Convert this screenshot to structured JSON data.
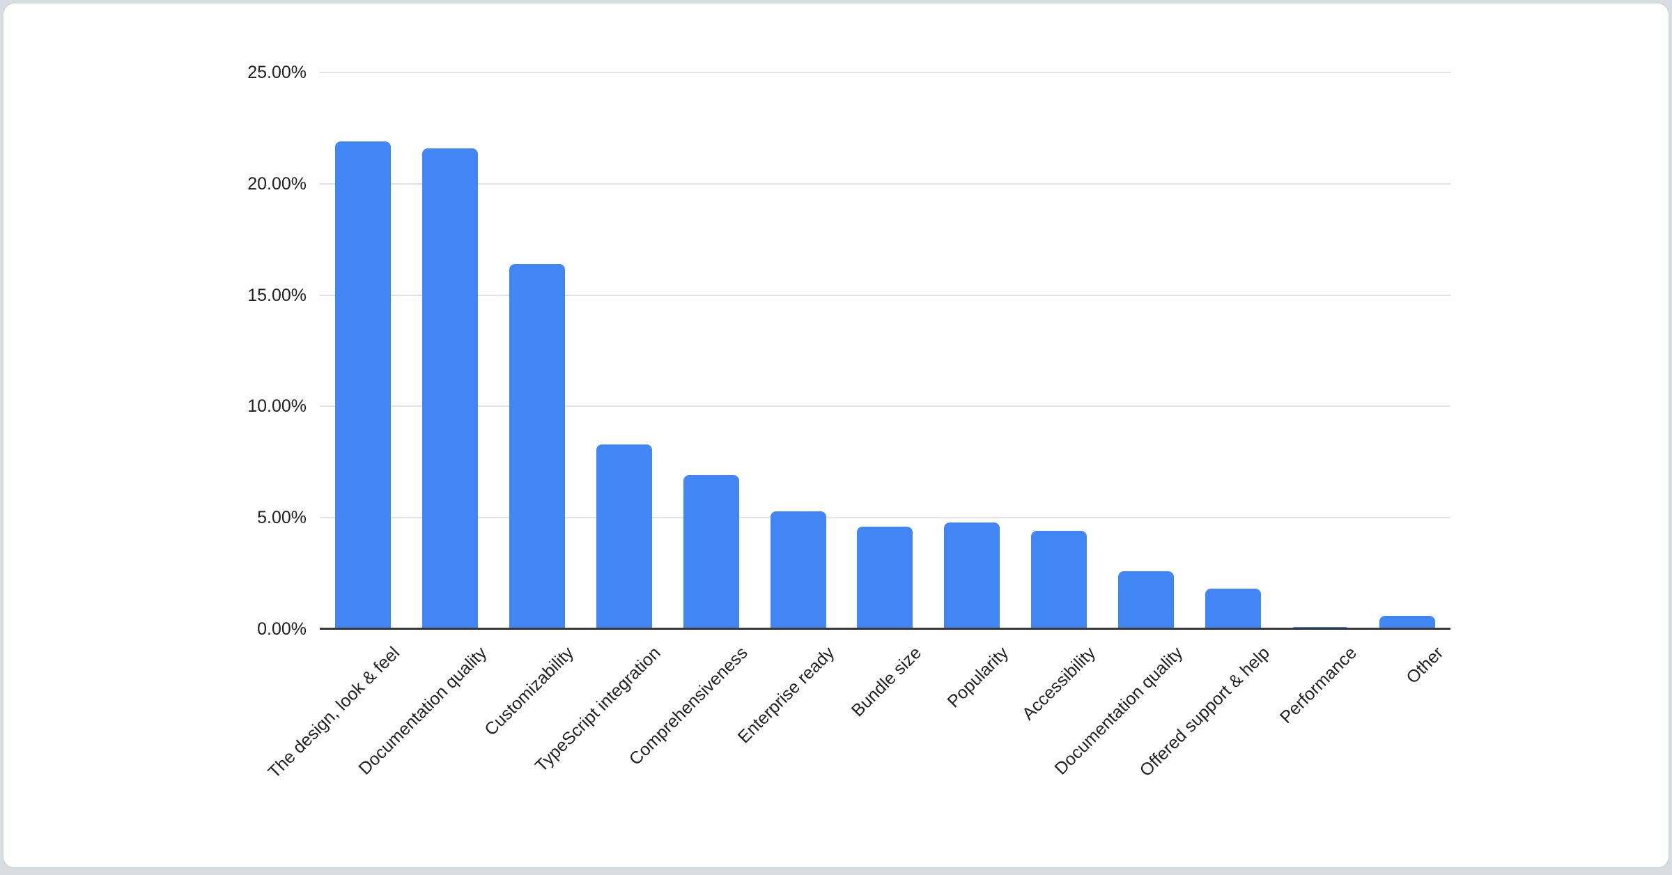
{
  "page": {
    "background_color": "#d9dce0",
    "card_background": "#ffffff",
    "card_border_color": "#d3d6da"
  },
  "chart_data": {
    "type": "bar",
    "title": "",
    "xlabel": "",
    "ylabel": "",
    "categories": [
      "The design, look & feel",
      "Documentation quality",
      "Customizability",
      "TypeScript integration",
      "Comprehensiveness",
      "Enterprise ready",
      "Bundle size",
      "Popularity",
      "Accessibility",
      "Documentation quality",
      "Offered support & help",
      "Performance",
      "Other"
    ],
    "values": [
      21.9,
      21.6,
      16.4,
      8.3,
      6.9,
      5.3,
      4.6,
      4.8,
      4.4,
      2.6,
      1.8,
      0.1,
      0.6
    ],
    "value_unit": "%",
    "ylim": [
      0,
      25
    ],
    "yticks": [
      0,
      5,
      10,
      15,
      20,
      25
    ],
    "ytick_labels": [
      "0.00%",
      "5.00%",
      "10.00%",
      "15.00%",
      "20.00%",
      "25.00%"
    ],
    "grid": true,
    "legend_position": "none",
    "bar_color": "#4285f4",
    "gridline_color": "#e3e3e3",
    "axis_line_color": "#383838",
    "tick_label_color": "#1f1f1f"
  }
}
